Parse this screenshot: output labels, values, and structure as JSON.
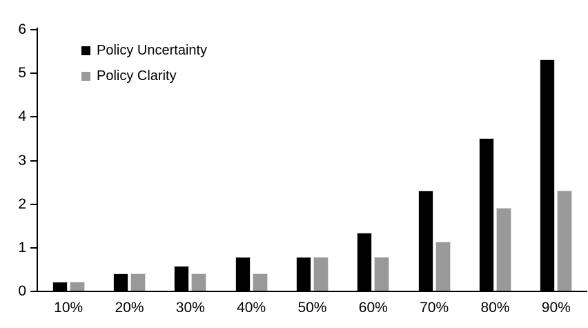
{
  "chart_data": {
    "type": "bar",
    "title": "",
    "xlabel": "",
    "ylabel": "",
    "categories": [
      "10%",
      "20%",
      "30%",
      "40%",
      "50%",
      "60%",
      "70%",
      "80%",
      "90%"
    ],
    "series": [
      {
        "name": "Policy Uncertainty",
        "color": "#000000",
        "values": [
          0.2,
          0.4,
          0.57,
          0.77,
          0.78,
          1.33,
          2.3,
          3.5,
          5.3
        ]
      },
      {
        "name": "Policy Clarity",
        "color": "#999999",
        "values": [
          0.2,
          0.4,
          0.4,
          0.4,
          0.77,
          0.77,
          1.13,
          1.9,
          2.3
        ]
      }
    ],
    "ylim": [
      0,
      6
    ],
    "yticks": [
      "0",
      "1",
      "2",
      "3",
      "4",
      "5",
      "6"
    ],
    "grid": false,
    "legend_position": "inside-top-left"
  },
  "colors": {
    "axis": "#000000",
    "background": "#ffffff",
    "bar_border": "#d9d9d9"
  }
}
